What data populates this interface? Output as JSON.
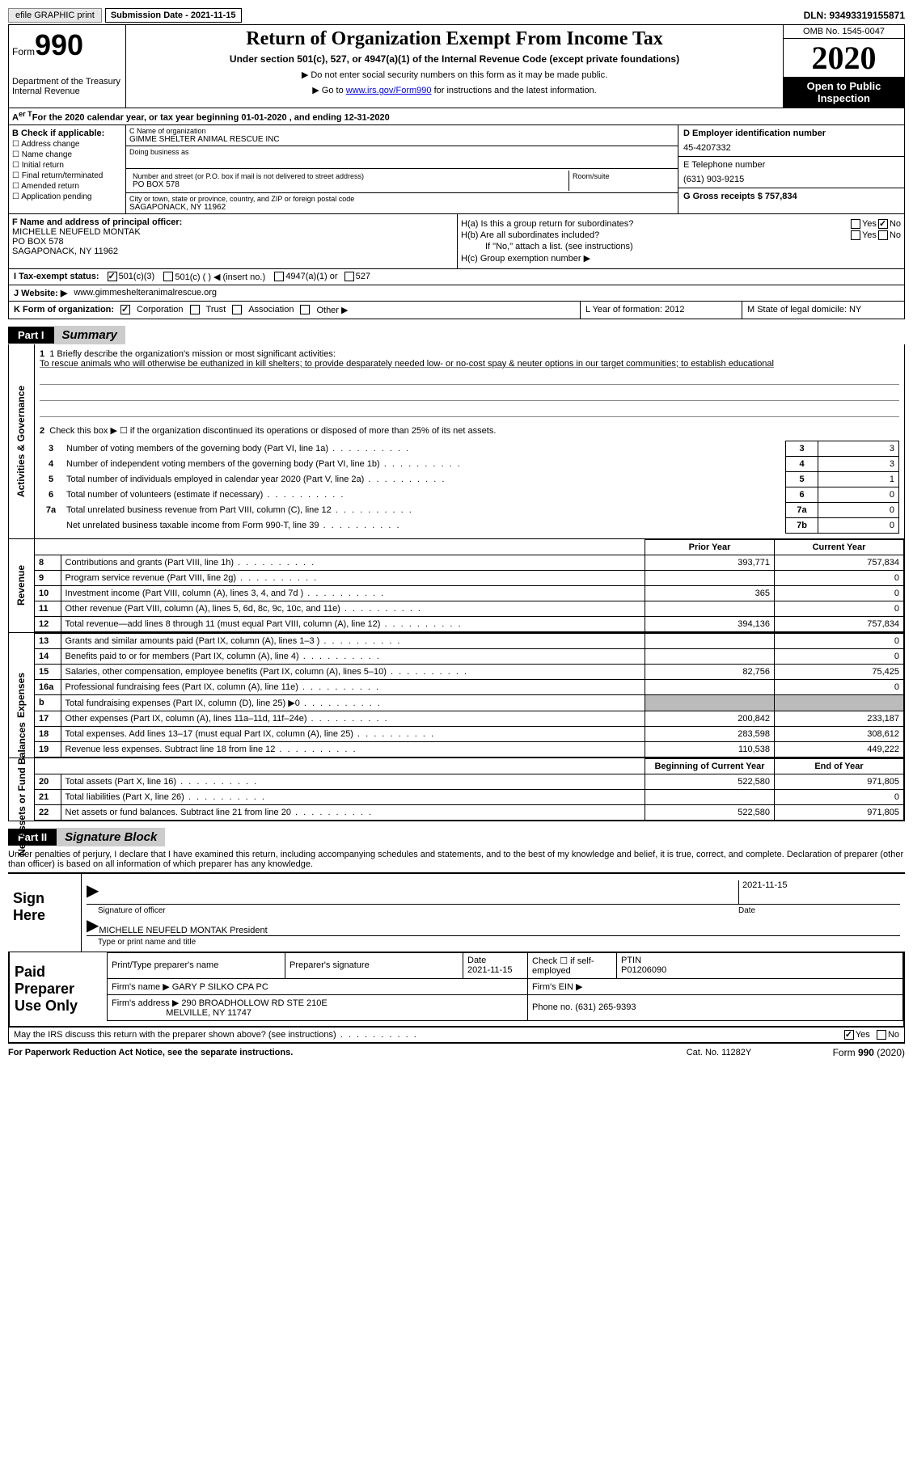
{
  "topbar": {
    "efile_btn": "efile GRAPHIC print",
    "sub_date_label": "Submission Date - 2021-11-15",
    "dln_label": "DLN: 93493319155871"
  },
  "header": {
    "form_word": "Form",
    "form_no": "990",
    "dept1": "Department of the Treasury",
    "dept2": "Internal Revenue",
    "title": "Return of Organization Exempt From Income Tax",
    "subtitle": "Under section 501(c), 527, or 4947(a)(1) of the Internal Revenue Code (except private foundations)",
    "note1": "▶ Do not enter social security numbers on this form as it may be made public.",
    "note2_pre": "▶ Go to ",
    "note2_link": "www.irs.gov/Form990",
    "note2_post": " for instructions and the latest information.",
    "omb": "OMB No. 1545-0047",
    "year": "2020",
    "open_inspection": "Open to Public Inspection"
  },
  "row_a": "For the 2020 calendar year, or tax year beginning 01-01-2020    , and ending 12-31-2020",
  "col_b": {
    "hdr": "B Check if applicable:",
    "items": [
      "Address change",
      "Name change",
      "Initial return",
      "Final return/terminated",
      "Amended return",
      "Application pending"
    ]
  },
  "col_c": {
    "name_label": "C Name of organization",
    "name_val": "GIMME SHELTER ANIMAL RESCUE INC",
    "dba_label": "Doing business as",
    "street_label": "Number and street (or P.O. box if mail is not delivered to street address)",
    "room_label": "Room/suite",
    "street_val": "PO BOX 578",
    "city_label": "City or town, state or province, country, and ZIP or foreign postal code",
    "city_val": "SAGAPONACK, NY  11962"
  },
  "col_d": {
    "ein_label": "D Employer identification number",
    "ein_val": "45-4207332",
    "phone_label": "E Telephone number",
    "phone_val": "(631) 903-9215",
    "gross_label": "G Gross receipts $ 757,834"
  },
  "f_box": {
    "label": "F  Name and address of principal officer:",
    "line1": "MICHELLE NEUFELD MONTAK",
    "line2": "PO BOX 578",
    "line3": "SAGAPONACK, NY  11962"
  },
  "h_box": {
    "ha_label": "H(a)  Is this a group return for subordinates?",
    "hb_label": "H(b)  Are all subordinates included?",
    "hb_note": "If \"No,\" attach a list. (see instructions)",
    "hc_label": "H(c)  Group exemption number ▶",
    "yes": "Yes",
    "no": "No"
  },
  "row_i": {
    "label": "I    Tax-exempt status:",
    "opt1": "501(c)(3)",
    "opt2": "501(c) (  ) ◀ (insert no.)",
    "opt3": "4947(a)(1) or",
    "opt4": "527"
  },
  "row_j": {
    "label": "J    Website: ▶",
    "val": "www.gimmeshelteranimalrescue.org"
  },
  "row_k": {
    "label": "K Form of organization:",
    "opts": [
      "Corporation",
      "Trust",
      "Association",
      "Other ▶"
    ]
  },
  "row_l": "L Year of formation: 2012",
  "row_m": "M State of legal domicile: NY",
  "part1": {
    "tag": "Part I",
    "title": "Summary",
    "vlabel1": "Activities & Governance",
    "vlabel2": "Revenue",
    "vlabel3": "Expenses",
    "vlabel4": "Net Assets or Fund Balances",
    "q1_label": "1   Briefly describe the organization's mission or most significant activities:",
    "q1_text": "To rescue animals who will otherwise be euthanized in kill shelters; to provide desparately needed low- or no-cost spay & neuter options in our target communities; to establish educational",
    "q2": "Check this box ▶ ☐  if the organization discontinued its operations or disposed of more than 25% of its net assets.",
    "lines_gov": [
      {
        "n": "3",
        "txt": "Number of voting members of the governing body (Part VI, line 1a)",
        "k": "3",
        "v": "3"
      },
      {
        "n": "4",
        "txt": "Number of independent voting members of the governing body (Part VI, line 1b)",
        "k": "4",
        "v": "3"
      },
      {
        "n": "5",
        "txt": "Total number of individuals employed in calendar year 2020 (Part V, line 2a)",
        "k": "5",
        "v": "1"
      },
      {
        "n": "6",
        "txt": "Total number of volunteers (estimate if necessary)",
        "k": "6",
        "v": "0"
      },
      {
        "n": "7a",
        "txt": "Total unrelated business revenue from Part VIII, column (C), line 12",
        "k": "7a",
        "v": "0"
      },
      {
        "n": "",
        "txt": "Net unrelated business taxable income from Form 990-T, line 39",
        "k": "7b",
        "v": "0"
      }
    ],
    "py_hdr": "Prior Year",
    "cy_hdr": "Current Year",
    "rev_lines": [
      {
        "n": "8",
        "txt": "Contributions and grants (Part VIII, line 1h)",
        "py": "393,771",
        "cy": "757,834"
      },
      {
        "n": "9",
        "txt": "Program service revenue (Part VIII, line 2g)",
        "py": "",
        "cy": "0"
      },
      {
        "n": "10",
        "txt": "Investment income (Part VIII, column (A), lines 3, 4, and 7d )",
        "py": "365",
        "cy": "0"
      },
      {
        "n": "11",
        "txt": "Other revenue (Part VIII, column (A), lines 5, 6d, 8c, 9c, 10c, and 11e)",
        "py": "",
        "cy": "0"
      },
      {
        "n": "12",
        "txt": "Total revenue—add lines 8 through 11 (must equal Part VIII, column (A), line 12)",
        "py": "394,136",
        "cy": "757,834"
      }
    ],
    "exp_lines": [
      {
        "n": "13",
        "txt": "Grants and similar amounts paid (Part IX, column (A), lines 1–3 )",
        "py": "",
        "cy": "0"
      },
      {
        "n": "14",
        "txt": "Benefits paid to or for members (Part IX, column (A), line 4)",
        "py": "",
        "cy": "0"
      },
      {
        "n": "15",
        "txt": "Salaries, other compensation, employee benefits (Part IX, column (A), lines 5–10)",
        "py": "82,756",
        "cy": "75,425"
      },
      {
        "n": "16a",
        "txt": "Professional fundraising fees (Part IX, column (A), line 11e)",
        "py": "",
        "cy": "0"
      },
      {
        "n": "b",
        "txt": "Total fundraising expenses (Part IX, column (D), line 25) ▶0",
        "py": "BLOCK",
        "cy": "BLOCK"
      },
      {
        "n": "17",
        "txt": "Other expenses (Part IX, column (A), lines 11a–11d, 11f–24e)",
        "py": "200,842",
        "cy": "233,187"
      },
      {
        "n": "18",
        "txt": "Total expenses. Add lines 13–17 (must equal Part IX, column (A), line 25)",
        "py": "283,598",
        "cy": "308,612"
      },
      {
        "n": "19",
        "txt": "Revenue less expenses. Subtract line 18 from line 12",
        "py": "110,538",
        "cy": "449,222"
      }
    ],
    "boy_hdr": "Beginning of Current Year",
    "eoy_hdr": "End of Year",
    "net_lines": [
      {
        "n": "20",
        "txt": "Total assets (Part X, line 16)",
        "py": "522,580",
        "cy": "971,805"
      },
      {
        "n": "21",
        "txt": "Total liabilities (Part X, line 26)",
        "py": "",
        "cy": "0"
      },
      {
        "n": "22",
        "txt": "Net assets or fund balances. Subtract line 21 from line 20",
        "py": "522,580",
        "cy": "971,805"
      }
    ]
  },
  "part2": {
    "tag": "Part II",
    "title": "Signature Block",
    "penalties": "Under penalties of perjury, I declare that I have examined this return, including accompanying schedules and statements, and to the best of my knowledge and belief, it is true, correct, and complete. Declaration of preparer (other than officer) is based on all information of which preparer has any knowledge.",
    "sign_here": "Sign Here",
    "sig_officer_label": "Signature of officer",
    "sig_date": "2021-11-15",
    "sig_date_label": "Date",
    "officer_name": "MICHELLE NEUFELD MONTAK  President",
    "officer_name_label": "Type or print name and title",
    "paid_prep": "Paid Preparer Use Only",
    "prep_name_label": "Print/Type preparer's name",
    "prep_sig_label": "Preparer's signature",
    "prep_date_label": "Date",
    "prep_date": "2021-11-15",
    "self_emp_label": "Check ☐ if self-employed",
    "ptin_label": "PTIN",
    "ptin": "P01206090",
    "firm_name_label": "Firm's name    ▶",
    "firm_name": "GARY P SILKO CPA PC",
    "firm_ein_label": "Firm's EIN ▶",
    "firm_addr_label": "Firm's address ▶",
    "firm_addr1": "290 BROADHOLLOW RD STE 210E",
    "firm_addr2": "MELVILLE, NY  11747",
    "firm_phone_label": "Phone no. (631) 265-9393",
    "discuss": "May the IRS discuss this return with the preparer shown above? (see instructions)"
  },
  "footer": {
    "pra": "For Paperwork Reduction Act Notice, see the separate instructions.",
    "cat": "Cat. No. 11282Y",
    "form": "Form 990 (2020)"
  }
}
